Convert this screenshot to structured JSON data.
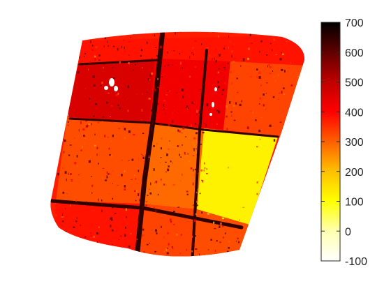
{
  "chart_data": {
    "type": "heatmap",
    "title": "",
    "xlabel": "",
    "ylabel": "",
    "axes_visible": false,
    "colormap": "hot (reversed): white → yellow → orange → red → dark red → black",
    "colorbar": {
      "location": "right",
      "clim": [
        -100,
        700
      ],
      "ticks": [
        -100,
        0,
        100,
        200,
        300,
        400,
        500,
        600,
        700
      ],
      "tick_labels": [
        "-100",
        "0",
        "100",
        "200",
        "300",
        "400",
        "500",
        "600",
        "700"
      ]
    },
    "regions": [
      {
        "name": "upper-left field",
        "approx_value": 460
      },
      {
        "name": "upper-middle field",
        "approx_value": 420
      },
      {
        "name": "upper-right field",
        "approx_value": 330
      },
      {
        "name": "top strip",
        "approx_value": 380
      },
      {
        "name": "middle-left field",
        "approx_value": 320
      },
      {
        "name": "middle-center field",
        "approx_value": 290
      },
      {
        "name": "right field",
        "approx_value": 120
      },
      {
        "name": "lower-left field",
        "approx_value": 380
      },
      {
        "name": "lower-middle field",
        "approx_value": 330
      },
      {
        "name": "lower-right field",
        "approx_value": 320
      },
      {
        "name": "field boundaries",
        "approx_value": 650
      }
    ]
  }
}
